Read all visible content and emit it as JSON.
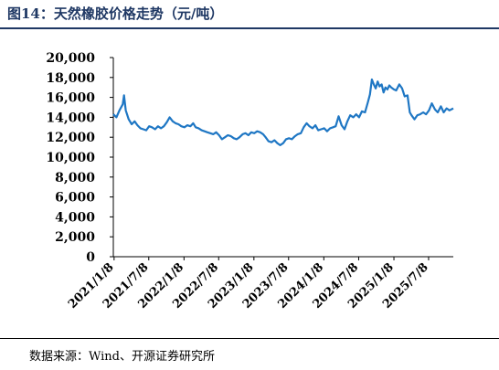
{
  "title": "图14：天然橡胶价格走势（元/吨）",
  "source": "数据来源：Wind、开源证券研究所",
  "colors": {
    "line": "#1f77c4",
    "title": "#1f3864",
    "axis": "#000000"
  },
  "chart_data": {
    "type": "line",
    "title": "",
    "xlabel": "",
    "ylabel": "",
    "ylim": [
      0,
      20000
    ],
    "yticks": [
      0,
      2000,
      4000,
      6000,
      8000,
      10000,
      12000,
      14000,
      16000,
      18000,
      20000
    ],
    "ytick_labels": [
      "0",
      "2,000",
      "4,000",
      "6,000",
      "8,000",
      "10,000",
      "12,000",
      "14,000",
      "16,000",
      "18,000",
      "20,000"
    ],
    "xlim": [
      "2021-01-04",
      "2025-11-14"
    ],
    "xtick_labels": [
      "2021/1/8",
      "2021/7/8",
      "2022/1/8",
      "2022/7/8",
      "2023/1/8",
      "2023/7/8",
      "2024/1/8",
      "2024/7/8",
      "2025/1/8",
      "2025/7/8"
    ],
    "grid": false,
    "legend": "none",
    "series": [
      {
        "name": "",
        "x": [
          "2021-01-04",
          "2021-01-20",
          "2021-02-05",
          "2021-02-22",
          "2021-03-01",
          "2021-03-10",
          "2021-03-25",
          "2021-04-10",
          "2021-04-25",
          "2021-05-10",
          "2021-05-25",
          "2021-06-10",
          "2021-06-25",
          "2021-07-10",
          "2021-07-25",
          "2021-08-10",
          "2021-08-25",
          "2021-09-10",
          "2021-09-25",
          "2021-10-10",
          "2021-10-25",
          "2021-11-10",
          "2021-11-25",
          "2021-12-10",
          "2021-12-25",
          "2022-01-10",
          "2022-01-25",
          "2022-02-10",
          "2022-02-25",
          "2022-03-10",
          "2022-03-25",
          "2022-04-10",
          "2022-04-25",
          "2022-05-10",
          "2022-05-25",
          "2022-06-10",
          "2022-06-25",
          "2022-07-10",
          "2022-07-25",
          "2022-08-10",
          "2022-08-25",
          "2022-09-10",
          "2022-09-25",
          "2022-10-10",
          "2022-10-25",
          "2022-11-10",
          "2022-11-25",
          "2022-12-10",
          "2022-12-25",
          "2023-01-10",
          "2023-01-25",
          "2023-02-10",
          "2023-02-25",
          "2023-03-10",
          "2023-03-25",
          "2023-04-10",
          "2023-04-25",
          "2023-05-10",
          "2023-05-25",
          "2023-06-10",
          "2023-06-25",
          "2023-07-10",
          "2023-07-25",
          "2023-08-10",
          "2023-08-25",
          "2023-09-10",
          "2023-09-25",
          "2023-10-10",
          "2023-10-25",
          "2023-11-10",
          "2023-11-25",
          "2023-12-10",
          "2023-12-25",
          "2024-01-10",
          "2024-01-25",
          "2024-02-10",
          "2024-02-25",
          "2024-03-10",
          "2024-03-25",
          "2024-04-10",
          "2024-04-25",
          "2024-05-10",
          "2024-05-25",
          "2024-06-10",
          "2024-06-25",
          "2024-07-10",
          "2024-07-25",
          "2024-08-10",
          "2024-08-25",
          "2024-09-05",
          "2024-09-15",
          "2024-09-25",
          "2024-10-05",
          "2024-10-15",
          "2024-10-25",
          "2024-11-05",
          "2024-11-15",
          "2024-11-25",
          "2024-12-05",
          "2024-12-15",
          "2024-12-25",
          "2025-01-08",
          "2025-01-20",
          "2025-02-05",
          "2025-02-20",
          "2025-03-05",
          "2025-03-20",
          "2025-04-01",
          "2025-04-10",
          "2025-04-25",
          "2025-05-10",
          "2025-05-25",
          "2025-06-10",
          "2025-06-25",
          "2025-07-10",
          "2025-07-25",
          "2025-08-10",
          "2025-08-25",
          "2025-09-10",
          "2025-09-25",
          "2025-10-10",
          "2025-10-25",
          "2025-11-14"
        ],
        "y": [
          14300,
          14000,
          14700,
          15300,
          16200,
          14700,
          13800,
          13300,
          13600,
          13200,
          12900,
          12800,
          12700,
          13100,
          13000,
          12800,
          13100,
          12900,
          13100,
          13500,
          14000,
          13600,
          13400,
          13300,
          13100,
          13000,
          13200,
          13100,
          13400,
          13000,
          12900,
          12700,
          12600,
          12500,
          12400,
          12300,
          12500,
          12200,
          11800,
          12000,
          12200,
          12100,
          11900,
          11800,
          12000,
          12300,
          12400,
          12200,
          12500,
          12400,
          12600,
          12500,
          12300,
          12000,
          11600,
          11500,
          11700,
          11400,
          11200,
          11400,
          11800,
          11900,
          11800,
          12100,
          12300,
          12400,
          13000,
          13400,
          13100,
          12900,
          13200,
          12700,
          12800,
          12900,
          12600,
          12900,
          13000,
          13100,
          14100,
          13200,
          12800,
          13600,
          14200,
          14000,
          14300,
          14000,
          14600,
          14500,
          15500,
          16300,
          17800,
          17300,
          16900,
          17600,
          17100,
          17300,
          16500,
          17000,
          16800,
          17200,
          17000,
          16800,
          16700,
          17300,
          16900,
          16100,
          16200,
          14500,
          14200,
          13800,
          14200,
          14300,
          14500,
          14300,
          14700,
          15400,
          14800,
          14500,
          15100,
          14500,
          14900,
          14700,
          14900
        ]
      }
    ]
  }
}
